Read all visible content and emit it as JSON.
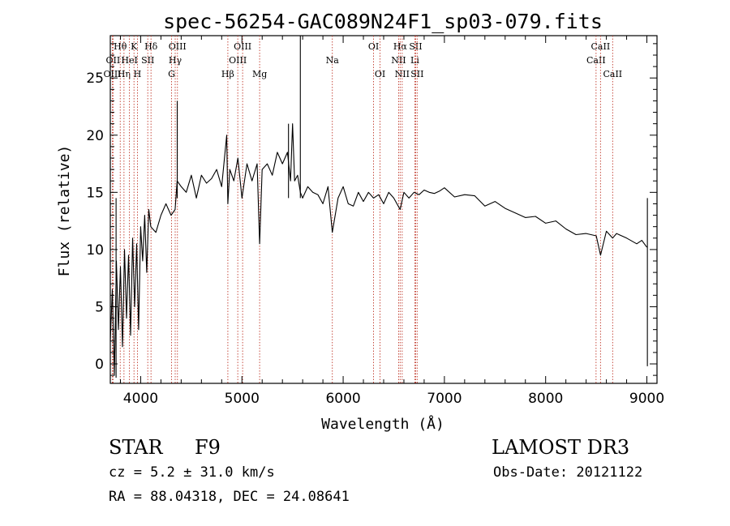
{
  "chart_data": {
    "type": "line",
    "title": "spec-56254-GAC089N24F1_sp03-079.fits",
    "xlabel": "Wavelength (Å)",
    "ylabel": "Flux (relative)",
    "xlim": [
      3700,
      9100
    ],
    "ylim": [
      -1.7,
      28.7
    ],
    "xticks": [
      4000,
      5000,
      6000,
      7000,
      8000,
      9000
    ],
    "xtick_labels": [
      "4000",
      "5000",
      "6000",
      "7000",
      "8000",
      "9000"
    ],
    "yticks": [
      0,
      5,
      10,
      15,
      20,
      25
    ],
    "ytick_labels": [
      "0",
      "5",
      "10",
      "15",
      "20",
      "25"
    ],
    "grid": false,
    "series": [
      {
        "name": "spectrum",
        "color": "#000000",
        "x": [
          3700,
          3720,
          3740,
          3760,
          3780,
          3800,
          3820,
          3840,
          3860,
          3880,
          3900,
          3920,
          3940,
          3960,
          3980,
          4000,
          4020,
          4040,
          4060,
          4080,
          4100,
          4150,
          4200,
          4250,
          4300,
          4340,
          4360,
          4400,
          4450,
          4500,
          4550,
          4600,
          4650,
          4700,
          4750,
          4800,
          4850,
          4861,
          4880,
          4920,
          4960,
          5000,
          5050,
          5100,
          5150,
          5175,
          5200,
          5250,
          5300,
          5350,
          5400,
          5450,
          5480,
          5500,
          5520,
          5550,
          5577,
          5600,
          5650,
          5700,
          5750,
          5800,
          5850,
          5893,
          5950,
          6000,
          6050,
          6100,
          6150,
          6200,
          6250,
          6300,
          6350,
          6400,
          6450,
          6500,
          6563,
          6600,
          6650,
          6700,
          6750,
          6800,
          6850,
          6900,
          6950,
          7000,
          7100,
          7200,
          7300,
          7400,
          7500,
          7600,
          7700,
          7800,
          7900,
          8000,
          8100,
          8200,
          8300,
          8400,
          8500,
          8542,
          8600,
          8662,
          8700,
          8800,
          8900,
          8950,
          9000
        ],
        "y": [
          2.0,
          6.5,
          -1.0,
          9.0,
          3.0,
          8.5,
          1.5,
          10.0,
          4.0,
          9.5,
          2.5,
          11.0,
          5.0,
          10.5,
          3.0,
          12.0,
          9.0,
          13.0,
          8.0,
          13.5,
          12.0,
          11.5,
          13.0,
          14.0,
          13.0,
          13.5,
          16.0,
          15.5,
          15.0,
          16.5,
          14.5,
          16.5,
          15.8,
          16.2,
          17.0,
          15.5,
          20.0,
          14.0,
          17.0,
          16.0,
          18.0,
          14.5,
          17.5,
          16.0,
          17.5,
          10.5,
          17.0,
          17.5,
          16.5,
          18.5,
          17.5,
          18.5,
          16.0,
          21.0,
          16.0,
          16.5,
          15.0,
          14.5,
          15.5,
          15.0,
          14.8,
          14.0,
          15.5,
          11.5,
          14.5,
          15.5,
          14.0,
          13.8,
          15.0,
          14.2,
          15.0,
          14.5,
          14.8,
          14.0,
          15.0,
          14.5,
          13.5,
          15.0,
          14.5,
          15.0,
          14.8,
          15.2,
          15.0,
          14.9,
          15.1,
          15.4,
          14.6,
          14.8,
          14.7,
          13.8,
          14.2,
          13.6,
          13.2,
          12.8,
          12.9,
          12.3,
          12.5,
          11.8,
          11.3,
          11.4,
          11.2,
          9.5,
          11.6,
          11.0,
          11.4,
          11.0,
          10.5,
          10.8,
          10.2
        ]
      }
    ],
    "spikes": [
      {
        "x": 5460,
        "y": 21.0
      },
      {
        "x": 5577,
        "y": 28.7
      },
      {
        "x": 4361,
        "y": 23.0
      },
      {
        "x": 3757,
        "y": -1.2
      },
      {
        "x": 9005,
        "y": -0.2
      }
    ],
    "line_markers": [
      {
        "name": "Hθ",
        "x": 3798,
        "row": 0
      },
      {
        "name": "OII",
        "x": 3727,
        "row": 1
      },
      {
        "name": "OIII",
        "x": 3720,
        "row": 2
      },
      {
        "name": "Hη",
        "x": 3835,
        "row": 2
      },
      {
        "name": "HeI",
        "x": 3889,
        "row": 1
      },
      {
        "name": "K",
        "x": 3934,
        "row": 0
      },
      {
        "name": "H",
        "x": 3968,
        "row": 2
      },
      {
        "name": "SII",
        "x": 4070,
        "row": 1
      },
      {
        "name": "Hδ",
        "x": 4102,
        "row": 0
      },
      {
        "name": "G",
        "x": 4305,
        "row": 2
      },
      {
        "name": "Hγ",
        "x": 4341,
        "row": 1
      },
      {
        "name": "OIII",
        "x": 4363,
        "row": 0
      },
      {
        "name": "Hβ",
        "x": 4861,
        "row": 2
      },
      {
        "name": "OIII",
        "x": 4959,
        "row": 1
      },
      {
        "name": "OIII",
        "x": 5007,
        "row": 0
      },
      {
        "name": "Mg",
        "x": 5175,
        "row": 2
      },
      {
        "name": "Na",
        "x": 5893,
        "row": 1
      },
      {
        "name": "OI",
        "x": 6300,
        "row": 0
      },
      {
        "name": "OI",
        "x": 6364,
        "row": 2
      },
      {
        "name": "NII",
        "x": 6548,
        "row": 1
      },
      {
        "name": "Hα",
        "x": 6563,
        "row": 0
      },
      {
        "name": "NII",
        "x": 6583,
        "row": 2
      },
      {
        "name": "Li",
        "x": 6708,
        "row": 1
      },
      {
        "name": "SII",
        "x": 6716,
        "row": 0
      },
      {
        "name": "SII",
        "x": 6731,
        "row": 2
      },
      {
        "name": "CaII",
        "x": 8498,
        "row": 1
      },
      {
        "name": "CaII",
        "x": 8542,
        "row": 0
      },
      {
        "name": "CaII",
        "x": 8662,
        "row": 2
      }
    ],
    "marker_color": "#c0392b"
  },
  "info": {
    "object_type": "STAR",
    "object_class": "F9",
    "survey": "LAMOST DR3",
    "redshift": "cz = 5.2 ± 31.0 km/s",
    "obs_date": "Obs-Date: 20121122",
    "coords": "RA =  88.04318, DEC =  24.08641"
  }
}
